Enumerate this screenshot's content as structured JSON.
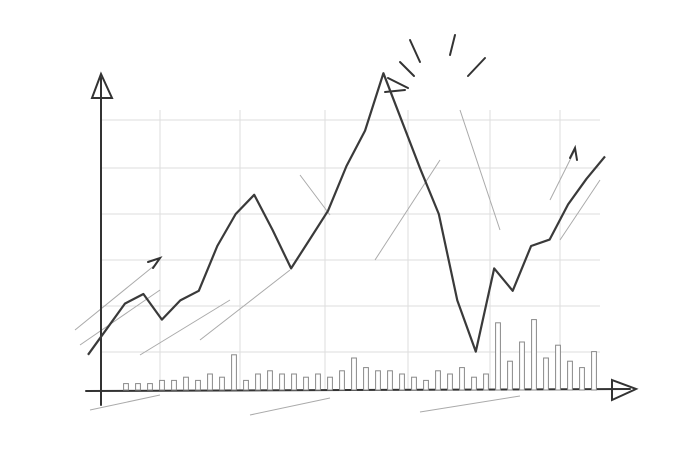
{
  "chart_data": {
    "type": "line",
    "grid": true,
    "ylim": [
      0,
      100
    ],
    "series": [
      {
        "type": "line",
        "color": "#3a3a3a",
        "values": [
          11,
          19,
          27,
          30,
          22,
          28,
          31,
          45,
          55,
          61,
          50,
          38,
          47,
          56,
          70,
          81,
          99,
          84,
          69,
          55,
          28,
          12,
          38,
          31,
          45,
          47,
          58,
          66,
          73
        ]
      },
      {
        "type": "bar",
        "color": "#888888",
        "values": [
          2,
          2,
          2,
          3,
          3,
          4,
          3,
          5,
          4,
          11,
          3,
          5,
          6,
          5,
          5,
          4,
          5,
          4,
          6,
          10,
          7,
          6,
          6,
          5,
          4,
          3,
          6,
          5,
          7,
          4,
          5,
          21,
          9,
          15,
          22,
          10,
          14,
          9,
          7,
          12
        ]
      }
    ]
  }
}
